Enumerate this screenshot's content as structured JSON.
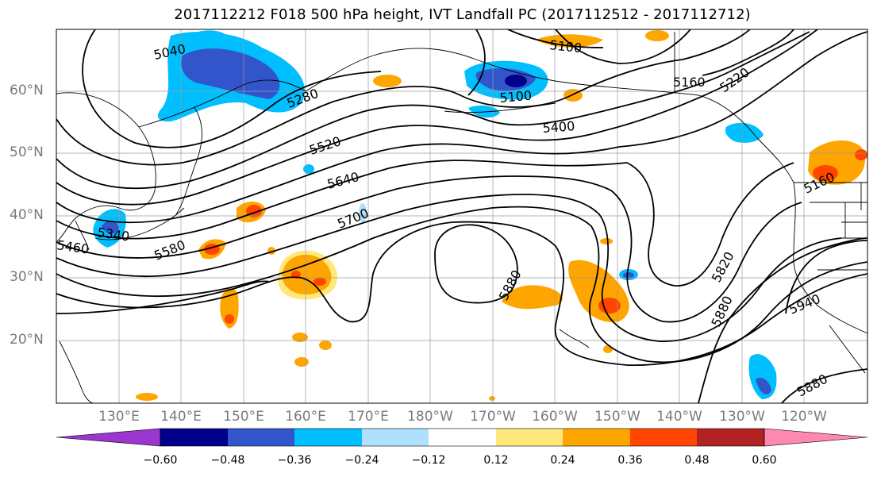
{
  "title": "2017112212 F018 500 hPa height, IVT Landfall PC (2017112512 - 2017112712)",
  "lat_labels": [
    "60°N",
    "50°N",
    "40°N",
    "30°N",
    "20°N"
  ],
  "lon_labels": [
    "130°E",
    "140°E",
    "150°E",
    "160°E",
    "170°E",
    "180°W",
    "170°W",
    "160°W",
    "150°W",
    "140°W",
    "130°W",
    "120°W"
  ],
  "contour_labels": [
    "5040",
    "5100",
    "5100",
    "5160",
    "5220",
    "5280",
    "5400",
    "5520",
    "5640",
    "5700",
    "5580",
    "5340",
    "5460",
    "5880",
    "5820",
    "5880",
    "5940",
    "5880",
    "5160"
  ],
  "colorbar": {
    "tick_labels": [
      "−0.60",
      "−0.48",
      "−0.36",
      "−0.24",
      "−0.12",
      "0.12",
      "0.24",
      "0.36",
      "0.48",
      "0.60"
    ],
    "colors": [
      "#9b37d0",
      "#00008b",
      "#3355cc",
      "#00bfff",
      "#b0e0ff",
      "#ffffff",
      "#ffe87a",
      "#ffa500",
      "#ff4500",
      "#b22222",
      "#ff88b0"
    ]
  }
}
